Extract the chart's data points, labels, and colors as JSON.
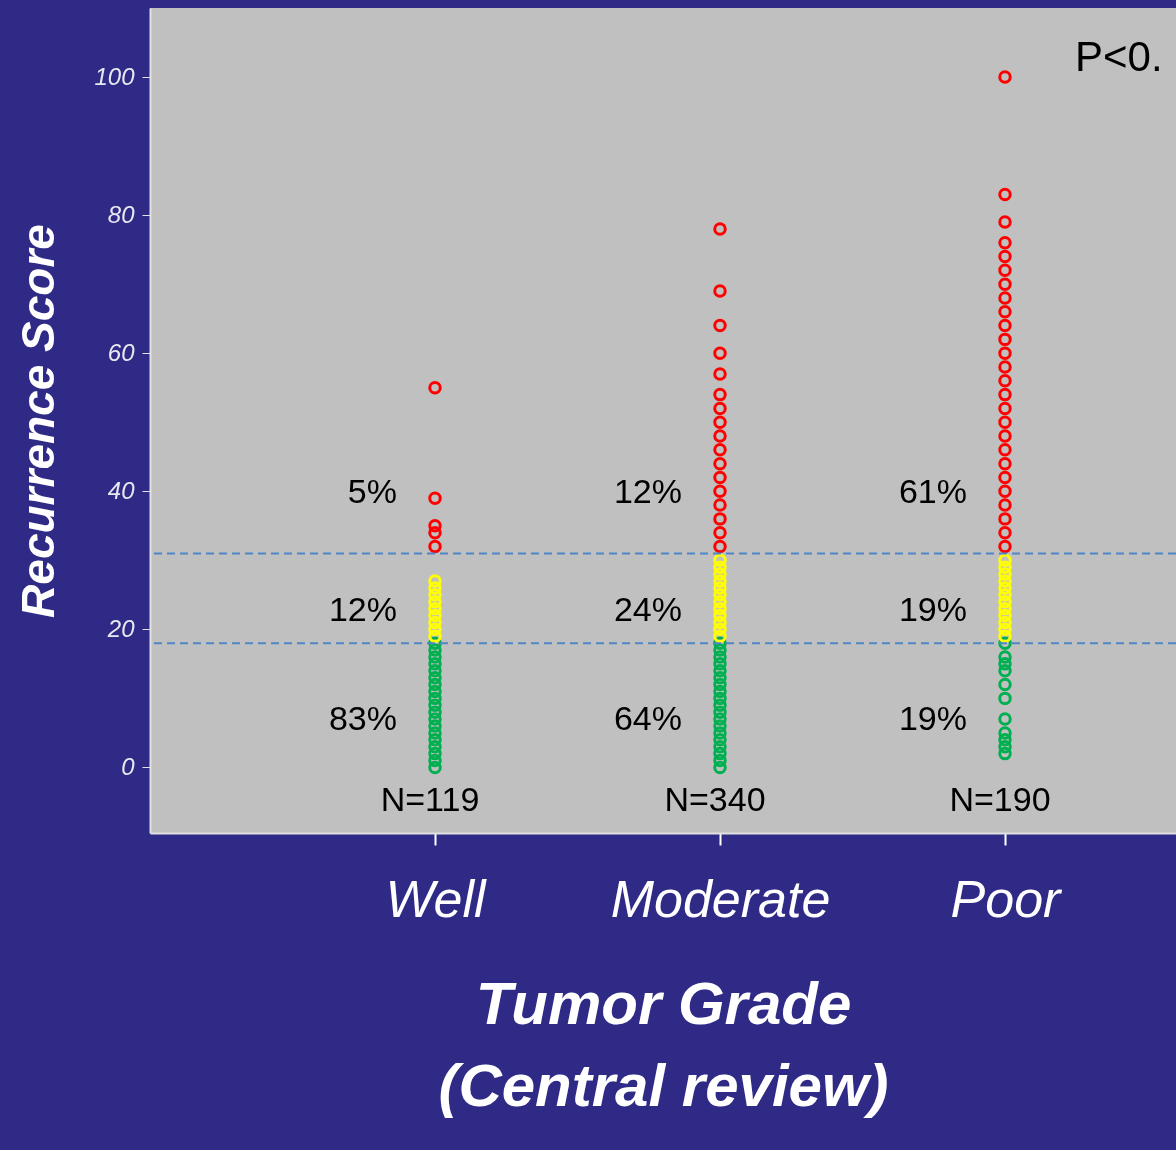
{
  "chart_data": {
    "type": "scatter",
    "xlabel": "Tumor Grade\n(Central review)",
    "ylabel": "Recurrence Score",
    "categories": [
      "Well",
      "Moderate",
      "Poor"
    ],
    "ylim": [
      -9.5,
      110
    ],
    "yticks": [
      0,
      20,
      40,
      60,
      80,
      100
    ],
    "grid": false,
    "marker": "circle",
    "series": [
      {
        "color": "#00b050",
        "x": [
          "Well",
          "Well",
          "Well",
          "Well",
          "Well",
          "Well",
          "Well",
          "Well",
          "Well",
          "Well",
          "Well",
          "Well",
          "Well",
          "Well",
          "Well",
          "Well",
          "Well",
          "Well",
          "Well",
          "Moderate",
          "Moderate",
          "Moderate",
          "Moderate",
          "Moderate",
          "Moderate",
          "Moderate",
          "Moderate",
          "Moderate",
          "Moderate",
          "Moderate",
          "Moderate",
          "Moderate",
          "Moderate",
          "Moderate",
          "Moderate",
          "Moderate",
          "Moderate",
          "Moderate",
          "Poor",
          "Poor",
          "Poor",
          "Poor",
          "Poor",
          "Poor",
          "Poor",
          "Poor",
          "Poor",
          "Poor",
          "Poor"
        ],
        "values": [
          0,
          1,
          2,
          3,
          4,
          5,
          6,
          7,
          8,
          9,
          10,
          11,
          12,
          13,
          14,
          15,
          16,
          17,
          18,
          0,
          1,
          2,
          3,
          4,
          5,
          6,
          7,
          8,
          9,
          10,
          11,
          12,
          13,
          14,
          15,
          16,
          17,
          18,
          2,
          3,
          4,
          5,
          7,
          10,
          12,
          14,
          15,
          16,
          18
        ]
      },
      {
        "color": "#ffff00",
        "x": [
          "Well",
          "Well",
          "Well",
          "Well",
          "Well",
          "Well",
          "Well",
          "Well",
          "Well",
          "Moderate",
          "Moderate",
          "Moderate",
          "Moderate",
          "Moderate",
          "Moderate",
          "Moderate",
          "Moderate",
          "Moderate",
          "Moderate",
          "Moderate",
          "Moderate",
          "Poor",
          "Poor",
          "Poor",
          "Poor",
          "Poor",
          "Poor",
          "Poor",
          "Poor",
          "Poor",
          "Poor",
          "Poor",
          "Poor"
        ],
        "values": [
          19,
          20,
          21,
          22,
          23,
          24,
          25,
          26,
          27,
          19,
          20,
          21,
          22,
          23,
          24,
          25,
          26,
          27,
          28,
          29,
          30,
          19,
          20,
          21,
          22,
          23,
          24,
          25,
          26,
          27,
          28,
          29,
          30
        ]
      },
      {
        "color": "#ff0000",
        "x": [
          "Well",
          "Well",
          "Well",
          "Well",
          "Well",
          "Moderate",
          "Moderate",
          "Moderate",
          "Moderate",
          "Moderate",
          "Moderate",
          "Moderate",
          "Moderate",
          "Moderate",
          "Moderate",
          "Moderate",
          "Moderate",
          "Moderate",
          "Moderate",
          "Moderate",
          "Moderate",
          "Moderate",
          "Poor",
          "Poor",
          "Poor",
          "Poor",
          "Poor",
          "Poor",
          "Poor",
          "Poor",
          "Poor",
          "Poor",
          "Poor",
          "Poor",
          "Poor",
          "Poor",
          "Poor",
          "Poor",
          "Poor",
          "Poor",
          "Poor",
          "Poor",
          "Poor",
          "Poor",
          "Poor",
          "Poor",
          "Poor",
          "Poor"
        ],
        "values": [
          55,
          39,
          35,
          34,
          32,
          78,
          69,
          64,
          60,
          57,
          54,
          52,
          50,
          48,
          46,
          44,
          42,
          40,
          38,
          36,
          34,
          32,
          100,
          83,
          79,
          76,
          74,
          72,
          70,
          68,
          66,
          64,
          62,
          60,
          58,
          56,
          54,
          52,
          50,
          48,
          46,
          44,
          42,
          40,
          38,
          36,
          34,
          32
        ]
      }
    ],
    "ref_lines": [
      {
        "axis": "y",
        "value": 18,
        "color": "#4f86c6",
        "line_style": "dashed"
      },
      {
        "axis": "y",
        "value": 31,
        "color": "#4f86c6",
        "line_style": "dashed"
      }
    ],
    "annotations": [
      "P<0.",
      "5%",
      "12%",
      "83%",
      "12%",
      "24%",
      "64%",
      "61%",
      "19%",
      "19%",
      "N=119",
      "N=340",
      "N=190"
    ]
  }
}
